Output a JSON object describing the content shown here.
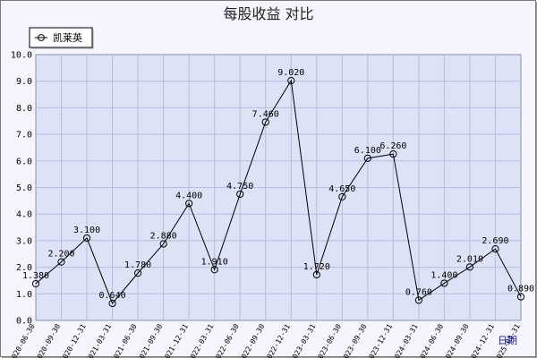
{
  "chart_data": {
    "type": "line",
    "title": "每股收益  对比",
    "xlabel": "日期",
    "ylabel": "",
    "ylim": [
      0,
      10
    ],
    "yticks": [
      "0.0",
      "1.0",
      "2.0",
      "3.0",
      "4.0",
      "5.0",
      "6.0",
      "7.0",
      "8.0",
      "9.0",
      "10.0"
    ],
    "grid": true,
    "legend_position": "top-left",
    "categories": [
      "2020-06-30",
      "2020-09-30",
      "2020-12-31",
      "2021-03-31",
      "2021-06-30",
      "2021-09-30",
      "2021-12-31",
      "2022-03-31",
      "2022-06-30",
      "2022-09-30",
      "2022-12-31",
      "2023-03-31",
      "2023-06-30",
      "2023-09-30",
      "2023-12-31",
      "2024-03-31",
      "2024-06-30",
      "2024-09-30",
      "2024-12-31",
      "2025-03-31"
    ],
    "series": [
      {
        "name": "凯莱英",
        "values": [
          1.38,
          2.2,
          3.1,
          0.64,
          1.78,
          2.88,
          4.4,
          1.91,
          4.75,
          7.46,
          9.02,
          1.72,
          4.65,
          6.1,
          6.26,
          0.76,
          1.4,
          2.01,
          2.69,
          0.89
        ],
        "labels": [
          "1.380",
          "2.200",
          "3.100",
          "0.640",
          "1.780",
          "2.880",
          "4.400",
          "1.910",
          "4.750",
          "7.460",
          "9.020",
          "1.720",
          "4.650",
          "6.100",
          "6.260",
          "0.760",
          "1.400",
          "2.010",
          "2.690",
          "0.890"
        ],
        "color": "#000000"
      }
    ],
    "colors": {
      "plot_bg": "#dde2f6",
      "grid": "#b4bde0",
      "frame_bg": "#f5f5fd"
    }
  }
}
